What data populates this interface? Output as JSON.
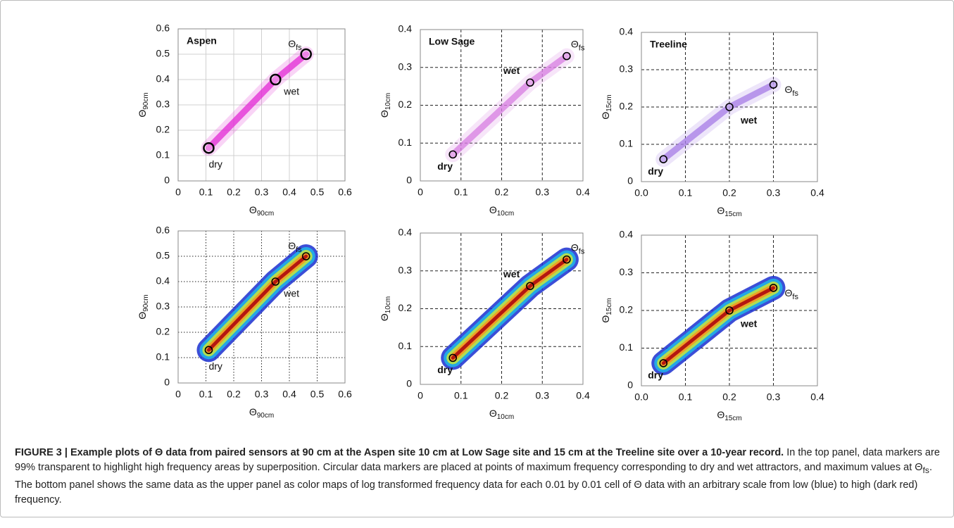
{
  "chart_data": [
    {
      "type": "scatter",
      "title": "Aspen",
      "x": [
        0.11,
        0.35,
        0.46
      ],
      "y": [
        0.13,
        0.4,
        0.5
      ],
      "point_labels": [
        "dry",
        "wet",
        {
          "text": "Θ",
          "sub": "fs"
        }
      ],
      "xlabel": {
        "text": "Θ",
        "sub": "90cm"
      },
      "ylabel": {
        "text": "Θ",
        "sub": "90cm"
      },
      "xlim": [
        0,
        0.6
      ],
      "ylim": [
        0,
        0.6
      ],
      "xticks": [
        0,
        0.1,
        0.2,
        0.3,
        0.4,
        0.5,
        0.6
      ],
      "yticks": [
        0,
        0.1,
        0.2,
        0.3,
        0.4,
        0.5,
        0.6
      ],
      "grid": "solid",
      "color": "#e22ad4",
      "marker_size": "large"
    },
    {
      "type": "scatter",
      "title": "Low Sage",
      "x": [
        0.08,
        0.27,
        0.36
      ],
      "y": [
        0.07,
        0.26,
        0.33
      ],
      "point_labels": [
        "dry",
        "wet",
        {
          "text": "Θ",
          "sub": "fs"
        }
      ],
      "xlabel": {
        "text": "Θ",
        "sub": "10cm"
      },
      "ylabel": {
        "text": "Θ",
        "sub": "10cm"
      },
      "xlim": [
        0,
        0.4
      ],
      "ylim": [
        0,
        0.4
      ],
      "xticks": [
        0,
        0.1,
        0.2,
        0.3,
        0.4
      ],
      "yticks": [
        0,
        0.1,
        0.2,
        0.3,
        0.4
      ],
      "grid": "dashed",
      "color": "#d77ce0",
      "marker_size": "small"
    },
    {
      "type": "scatter",
      "title": "Treeline",
      "x": [
        0.05,
        0.2,
        0.3
      ],
      "y": [
        0.06,
        0.2,
        0.26
      ],
      "point_labels": [
        "dry",
        "wet",
        {
          "text": "Θ",
          "sub": "fs"
        }
      ],
      "xlabel": {
        "text": "Θ",
        "sub": "15cm"
      },
      "ylabel": {
        "text": "Θ",
        "sub": "15cm"
      },
      "xlim": [
        0,
        0.4
      ],
      "ylim": [
        0,
        0.4
      ],
      "xticks": [
        {
          "value": 0,
          "label": "0.0"
        },
        0.1,
        0.2,
        0.3,
        0.4
      ],
      "yticks": [
        0,
        0.1,
        0.2,
        0.3,
        0.4
      ],
      "grid": "dashed",
      "color": "#a57be6",
      "marker_size": "small"
    },
    {
      "type": "scatter",
      "x": [
        0.11,
        0.35,
        0.46
      ],
      "y": [
        0.13,
        0.4,
        0.5
      ],
      "point_labels": [
        "dry",
        "wet",
        {
          "text": "Θ",
          "sub": "fs"
        }
      ],
      "xlabel": {
        "text": "Θ",
        "sub": "90cm"
      },
      "ylabel": {
        "text": "Θ",
        "sub": "90cm"
      },
      "xlim": [
        0,
        0.6
      ],
      "ylim": [
        0,
        0.6
      ],
      "xticks": [
        0,
        0.1,
        0.2,
        0.3,
        0.4,
        0.5,
        0.6
      ],
      "yticks": [
        0,
        0.1,
        0.2,
        0.3,
        0.4,
        0.5,
        0.6
      ],
      "grid": "dotted",
      "color_map": "jet",
      "marker_size": "small"
    },
    {
      "type": "scatter",
      "x": [
        0.08,
        0.27,
        0.36
      ],
      "y": [
        0.07,
        0.26,
        0.33
      ],
      "point_labels": [
        "dry",
        "wet",
        {
          "text": "Θ",
          "sub": "fs"
        }
      ],
      "xlabel": {
        "text": "Θ",
        "sub": "10cm"
      },
      "ylabel": {
        "text": "Θ",
        "sub": "10cm"
      },
      "xlim": [
        0,
        0.4
      ],
      "ylim": [
        0,
        0.4
      ],
      "xticks": [
        0,
        0.1,
        0.2,
        0.3,
        0.4
      ],
      "yticks": [
        0,
        0.1,
        0.2,
        0.3,
        0.4
      ],
      "grid": "dashed",
      "color_map": "jet",
      "marker_size": "small"
    },
    {
      "type": "scatter",
      "x": [
        0.05,
        0.2,
        0.3
      ],
      "y": [
        0.06,
        0.2,
        0.26
      ],
      "point_labels": [
        "dry",
        "wet",
        {
          "text": "Θ",
          "sub": "fs"
        }
      ],
      "xlabel": {
        "text": "Θ",
        "sub": "15cm"
      },
      "ylabel": {
        "text": "Θ",
        "sub": "15cm"
      },
      "xlim": [
        0,
        0.4
      ],
      "ylim": [
        0,
        0.4
      ],
      "xticks": [
        {
          "value": 0,
          "label": "0.0"
        },
        0.1,
        0.2,
        0.3,
        0.4
      ],
      "yticks": [
        0,
        0.1,
        0.2,
        0.3,
        0.4
      ],
      "grid": "dashed",
      "color_map": "jet",
      "marker_size": "small"
    }
  ],
  "caption": {
    "title": "FIGURE 3 | Example plots of Θ data from paired sensors at 90 cm at the Aspen site 10 cm at Low Sage site and 15 cm at the Treeline site over a 10-year record.",
    "body_1": "In the top panel, data markers are 99% transparent to highlight high frequency areas by superposition. Circular data markers are placed at points of maximum frequency corresponding to dry and wet attractors, and maximum values at Θ",
    "body_sub": "fs",
    "body_2": ". The bottom panel shows the same data as the upper panel as color maps of log transformed frequency data for each 0.01 by 0.01 cell of Θ data with an arbitrary scale from low (blue) to high (dark red) frequency."
  }
}
